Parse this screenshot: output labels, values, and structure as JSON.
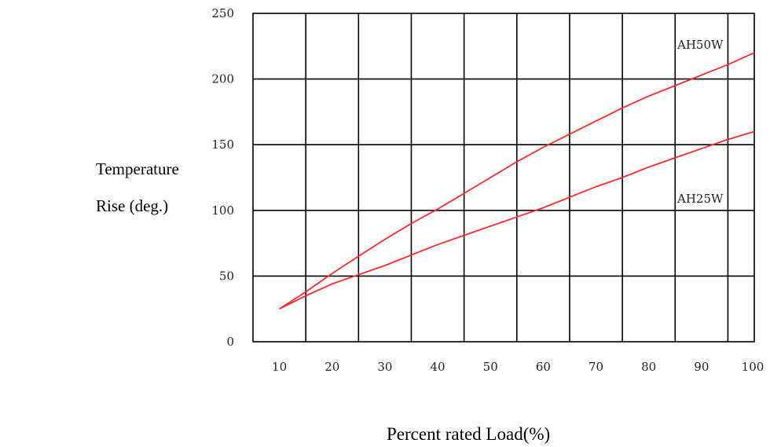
{
  "chart_data": {
    "type": "line",
    "title": "",
    "xlabel": "Percent rated Load(%)",
    "ylabel_lines": [
      "Temperature",
      "Rise (deg.)"
    ],
    "x_ticks": [
      10,
      20,
      30,
      40,
      50,
      60,
      70,
      80,
      90,
      100
    ],
    "y_ticks": [
      0,
      50,
      100,
      150,
      200,
      250
    ],
    "xlim": [
      5,
      100
    ],
    "ylim": [
      0,
      250
    ],
    "grid": true,
    "series_color": "#ff2a2a",
    "series": [
      {
        "name": "AH50W",
        "x": [
          10,
          15,
          20,
          25,
          30,
          35,
          40,
          45,
          50,
          55,
          60,
          65,
          70,
          75,
          80,
          85,
          90,
          95,
          100
        ],
        "y": [
          25,
          38,
          52,
          65,
          78,
          90,
          101,
          113,
          125,
          137,
          148,
          158,
          168,
          178,
          187,
          195,
          203,
          211,
          220
        ]
      },
      {
        "name": "AH25W",
        "x": [
          10,
          15,
          20,
          25,
          30,
          35,
          40,
          45,
          50,
          55,
          60,
          65,
          70,
          75,
          80,
          85,
          90,
          95,
          100
        ],
        "y": [
          25,
          35,
          44,
          51,
          58,
          66,
          74,
          81,
          88,
          95,
          102,
          110,
          118,
          125,
          133,
          140,
          147,
          154,
          160
        ]
      }
    ]
  }
}
